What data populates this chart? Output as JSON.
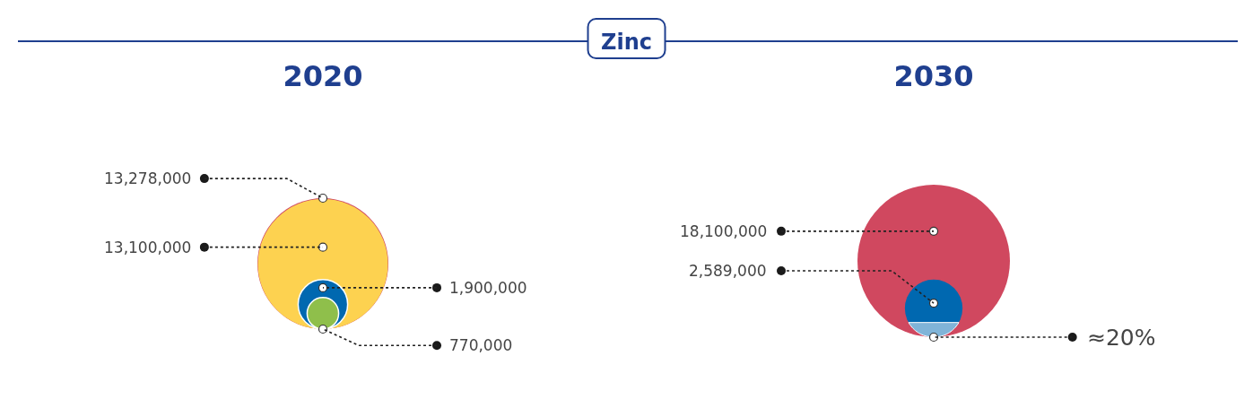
{
  "chart_data": [
    {
      "type": "other",
      "title": "Zinc"
    },
    {
      "type": "other",
      "title": "2020",
      "values": [
        13278000,
        13100000,
        1900000,
        770000
      ],
      "colors": [
        "#cf4a64",
        "#fdd250",
        "#0068b0",
        "#8fbf4b"
      ],
      "value_labels": [
        "13,278,000",
        "13,100,000",
        "1,900,000",
        "770,000"
      ]
    },
    {
      "type": "other",
      "title": "2030",
      "values": [
        18100000,
        2589000
      ],
      "colors": [
        "#d0485f",
        "#0068b0"
      ],
      "value_labels": [
        "18,100,000",
        "2,589,000"
      ],
      "annotations": [
        "≈20%"
      ]
    }
  ]
}
